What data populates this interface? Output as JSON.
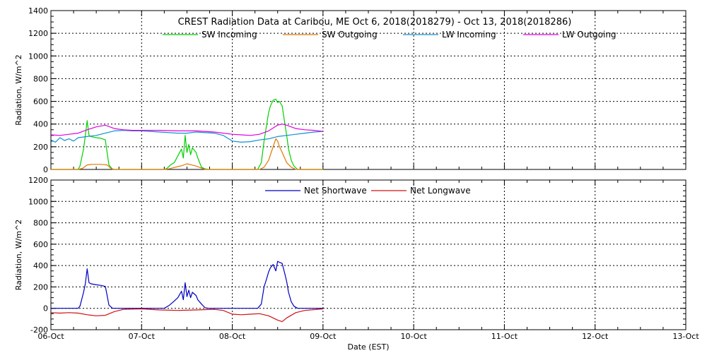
{
  "chart_data": [
    {
      "type": "line",
      "title": "CREST Radiation Data at Caribou, ME   Oct  6, 2018(2018279) - Oct 13, 2018(2018286)",
      "ylabel": "Radiation, W/m^2",
      "xlabel": "",
      "xlim": [
        "06-Oct",
        "13-Oct"
      ],
      "ylim": [
        0,
        1400
      ],
      "yticks": [
        "0",
        "200",
        "400",
        "600",
        "800",
        "1000",
        "1200",
        "1400"
      ],
      "xticks": [],
      "grid": true,
      "legend": "top",
      "series": [
        {
          "name": "SW Incoming",
          "color": "#00d000",
          "x": [
            0.0,
            0.3,
            0.32,
            0.36,
            0.38,
            0.4,
            0.42,
            0.44,
            0.5,
            0.55,
            0.6,
            0.62,
            0.64,
            0.68,
            1.0,
            1.25,
            1.28,
            1.32,
            1.36,
            1.4,
            1.44,
            1.46,
            1.48,
            1.5,
            1.52,
            1.54,
            1.56,
            1.6,
            1.62,
            1.64,
            1.66,
            1.7,
            1.74,
            2.0,
            2.28,
            2.32,
            2.35,
            2.38,
            2.4,
            2.42,
            2.45,
            2.48,
            2.5,
            2.52,
            2.55,
            2.58,
            2.6,
            2.62,
            2.65,
            2.68,
            2.72,
            3.0
          ],
          "y": [
            0,
            0,
            30,
            180,
            300,
            430,
            300,
            290,
            280,
            275,
            260,
            150,
            40,
            0,
            0,
            0,
            10,
            40,
            60,
            120,
            180,
            100,
            300,
            150,
            220,
            130,
            190,
            150,
            100,
            60,
            20,
            5,
            0,
            0,
            0,
            60,
            250,
            400,
            500,
            560,
            610,
            620,
            590,
            600,
            560,
            400,
            300,
            180,
            80,
            30,
            0,
            0
          ]
        },
        {
          "name": "SW Outgoing",
          "color": "#e07800",
          "x": [
            0.0,
            0.3,
            0.35,
            0.4,
            0.45,
            0.55,
            0.62,
            0.66,
            0.7,
            1.0,
            1.25,
            1.3,
            1.35,
            1.4,
            1.45,
            1.5,
            1.55,
            1.6,
            1.65,
            1.7,
            2.0,
            2.3,
            2.35,
            2.4,
            2.45,
            2.48,
            2.5,
            2.52,
            2.55,
            2.6,
            2.65,
            2.7,
            3.0
          ],
          "y": [
            0,
            0,
            10,
            40,
            45,
            45,
            40,
            10,
            0,
            0,
            0,
            5,
            15,
            25,
            35,
            50,
            40,
            30,
            15,
            0,
            0,
            0,
            20,
            80,
            200,
            270,
            250,
            200,
            150,
            60,
            20,
            0,
            0
          ]
        },
        {
          "name": "LW Incoming",
          "color": "#1090d0",
          "x": [
            0.0,
            0.05,
            0.1,
            0.15,
            0.2,
            0.25,
            0.3,
            0.4,
            0.5,
            0.6,
            0.7,
            0.8,
            0.9,
            1.0,
            1.2,
            1.4,
            1.5,
            1.6,
            1.8,
            1.9,
            2.0,
            2.1,
            2.2,
            2.3,
            2.4,
            2.5,
            2.6,
            2.7,
            2.8,
            2.9,
            3.0
          ],
          "y": [
            260,
            240,
            280,
            255,
            270,
            250,
            280,
            290,
            300,
            320,
            340,
            345,
            340,
            340,
            330,
            320,
            320,
            330,
            320,
            300,
            250,
            240,
            245,
            260,
            270,
            290,
            300,
            310,
            320,
            330,
            335
          ]
        },
        {
          "name": "LW Outgoing",
          "color": "#e000e0",
          "x": [
            0.0,
            0.1,
            0.2,
            0.3,
            0.4,
            0.5,
            0.6,
            0.7,
            0.8,
            0.9,
            1.0,
            1.2,
            1.4,
            1.6,
            1.8,
            2.0,
            2.1,
            2.2,
            2.3,
            2.4,
            2.5,
            2.55,
            2.6,
            2.7,
            2.8,
            2.9,
            3.0
          ],
          "y": [
            305,
            300,
            310,
            320,
            350,
            375,
            390,
            360,
            350,
            345,
            345,
            345,
            340,
            340,
            330,
            310,
            305,
            300,
            310,
            340,
            390,
            400,
            390,
            360,
            350,
            345,
            335
          ]
        }
      ]
    },
    {
      "type": "line",
      "title": "",
      "ylabel": "Radiation, W/m^2",
      "xlabel": "Date (EST)",
      "xlim": [
        "06-Oct",
        "13-Oct"
      ],
      "ylim": [
        -200,
        1200
      ],
      "yticks": [
        "-200",
        "0",
        "200",
        "400",
        "600",
        "800",
        "1000",
        "1200"
      ],
      "xticks": [
        "06-Oct",
        "07-Oct",
        "08-Oct",
        "09-Oct",
        "10-Oct",
        "11-Oct",
        "12-Oct",
        "13-Oct"
      ],
      "grid": true,
      "legend": "top",
      "series": [
        {
          "name": "Net Shortwave",
          "color": "#0000c0",
          "x": [
            0.0,
            0.3,
            0.32,
            0.36,
            0.38,
            0.4,
            0.42,
            0.44,
            0.5,
            0.55,
            0.6,
            0.62,
            0.64,
            0.68,
            1.0,
            1.25,
            1.3,
            1.35,
            1.4,
            1.44,
            1.46,
            1.48,
            1.5,
            1.52,
            1.54,
            1.56,
            1.6,
            1.62,
            1.66,
            1.7,
            1.74,
            2.0,
            2.28,
            2.32,
            2.35,
            2.38,
            2.4,
            2.42,
            2.45,
            2.48,
            2.5,
            2.52,
            2.55,
            2.58,
            2.6,
            2.62,
            2.65,
            2.68,
            2.72,
            3.0
          ],
          "y": [
            0,
            0,
            20,
            150,
            230,
            370,
            240,
            230,
            220,
            215,
            205,
            120,
            30,
            0,
            0,
            0,
            25,
            60,
            100,
            160,
            80,
            240,
            110,
            170,
            100,
            150,
            120,
            80,
            40,
            5,
            0,
            0,
            0,
            40,
            200,
            280,
            340,
            380,
            410,
            350,
            440,
            430,
            420,
            320,
            250,
            150,
            60,
            20,
            0,
            0
          ]
        },
        {
          "name": "Net Longwave",
          "color": "#d01010",
          "x": [
            0.0,
            0.1,
            0.2,
            0.3,
            0.4,
            0.5,
            0.6,
            0.7,
            0.8,
            1.0,
            1.2,
            1.4,
            1.6,
            1.8,
            1.9,
            2.0,
            2.1,
            2.2,
            2.3,
            2.4,
            2.5,
            2.55,
            2.6,
            2.7,
            2.8,
            3.0
          ],
          "y": [
            -40,
            -45,
            -40,
            -45,
            -60,
            -70,
            -65,
            -30,
            -10,
            -5,
            -15,
            -20,
            -15,
            -10,
            -20,
            -55,
            -60,
            -55,
            -50,
            -70,
            -110,
            -125,
            -90,
            -40,
            -20,
            -5
          ]
        }
      ]
    }
  ]
}
